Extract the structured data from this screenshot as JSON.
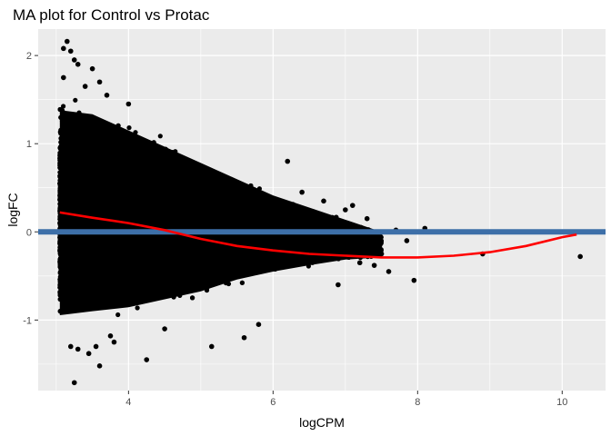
{
  "chart_data": {
    "type": "scatter",
    "title": "MA plot for Control vs Protac",
    "xlabel": "logCPM",
    "ylabel": "logFC",
    "xlim": [
      2.75,
      10.6
    ],
    "ylim": [
      -1.8,
      2.3
    ],
    "x_ticks": [
      4,
      6,
      8,
      10
    ],
    "y_ticks": [
      -1,
      0,
      1,
      2
    ],
    "grid": true,
    "background": "#EBEBEB",
    "grid_color": "#FFFFFF",
    "point_color": "#000000",
    "hline": {
      "y": 0,
      "color": "#3D6FA8"
    },
    "loess": {
      "color": "#FF0000",
      "x": [
        3.05,
        3.5,
        4.0,
        4.5,
        5.0,
        5.5,
        6.0,
        6.5,
        7.0,
        7.5,
        8.0,
        8.5,
        9.0,
        9.5,
        10.0,
        10.2
      ],
      "y": [
        0.22,
        0.16,
        0.1,
        0.02,
        -0.08,
        -0.16,
        -0.21,
        -0.25,
        -0.27,
        -0.29,
        -0.29,
        -0.27,
        -0.23,
        -0.16,
        -0.06,
        -0.03
      ]
    },
    "envelope": {
      "x": [
        3.05,
        3.5,
        4.0,
        4.5,
        5.0,
        5.5,
        6.0,
        6.5,
        7.0,
        7.5
      ],
      "upper": [
        1.5,
        1.45,
        1.25,
        1.05,
        0.85,
        0.65,
        0.45,
        0.3,
        0.15,
        0.0
      ],
      "lower": [
        -1.05,
        -1.0,
        -0.95,
        -0.85,
        -0.75,
        -0.6,
        -0.5,
        -0.42,
        -0.35,
        -0.32
      ]
    },
    "outliers": {
      "x": [
        3.1,
        3.15,
        3.2,
        3.25,
        3.1,
        3.3,
        3.5,
        3.6,
        3.4,
        3.7,
        3.2,
        3.3,
        3.55,
        4.25,
        3.8,
        3.6,
        4.5,
        5.15,
        5.6,
        4.0,
        5.8,
        6.2,
        6.4,
        6.7,
        7.0,
        7.2,
        7.3,
        7.5,
        7.7,
        7.85,
        8.1,
        7.6,
        7.95,
        8.9,
        10.25,
        6.9,
        7.4,
        7.1,
        3.45,
        3.25,
        3.75
      ],
      "y": [
        2.08,
        2.16,
        2.05,
        1.95,
        1.75,
        1.9,
        1.85,
        1.7,
        1.65,
        1.55,
        -1.3,
        -1.33,
        -1.3,
        -1.45,
        -1.25,
        -1.52,
        -1.1,
        -1.3,
        -1.2,
        1.45,
        -1.05,
        0.8,
        0.45,
        0.35,
        0.25,
        -0.35,
        0.15,
        -0.25,
        0.02,
        -0.1,
        0.04,
        -0.45,
        -0.55,
        -0.25,
        -0.28,
        -0.6,
        -0.38,
        0.3,
        -1.38,
        -1.71,
        -1.18
      ]
    }
  }
}
